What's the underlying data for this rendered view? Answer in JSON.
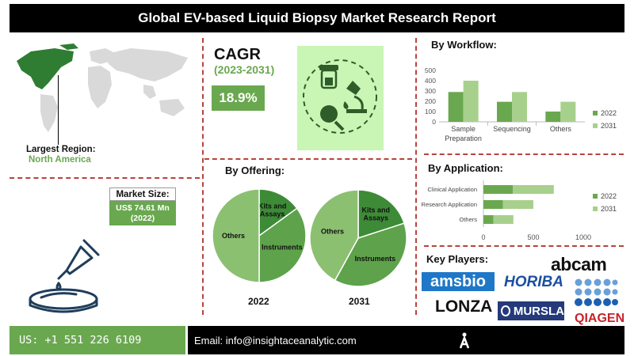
{
  "title": "Global EV-based Liquid Biopsy Market Research Report",
  "cagr": {
    "label": "CAGR",
    "years": "(2023-2031)",
    "value": "18.9%"
  },
  "region": {
    "label": "Largest Region:",
    "value": "North America"
  },
  "market_size": {
    "label": "Market Size:",
    "value_line1": "US$ 74.61 Mn",
    "value_line2": "(2022)"
  },
  "offering": {
    "title": "By Offering:",
    "years": [
      "2022",
      "2031"
    ],
    "slices": [
      "Kits and Assays",
      "Instruments",
      "Others"
    ]
  },
  "workflow": {
    "title": "By Workflow:"
  },
  "application": {
    "title": "By Application:"
  },
  "key_players": {
    "title": "Key Players:",
    "logos": [
      "abcam",
      "amsbio",
      "HORIBA",
      "LONZA",
      "MURSLA",
      "QIAGEN"
    ]
  },
  "footer": {
    "phone": "US: +1 551 226 6109",
    "email": "Email: info@insightaceanalytic.com"
  },
  "colors": {
    "green_2022": "#6aa84f",
    "green_2031": "#a8d08d",
    "pie_dark": "#3d8b37",
    "pie_mid": "#5ea24b",
    "pie_light": "#8cc071",
    "divider": "#b8433d"
  },
  "chart_data": [
    {
      "type": "bar",
      "title": "By Workflow:",
      "categories": [
        "Sample Preparation",
        "Sequencing",
        "Others"
      ],
      "series": [
        {
          "name": "2022",
          "values": [
            290,
            195,
            100
          ]
        },
        {
          "name": "2031",
          "values": [
            400,
            290,
            195
          ]
        }
      ],
      "ylim": [
        0,
        500
      ],
      "yticks": [
        0,
        100,
        200,
        300,
        400,
        500
      ],
      "legend": "right"
    },
    {
      "type": "bar",
      "orientation": "horizontal",
      "stacked": true,
      "title": "By Application:",
      "categories": [
        "Clinical Application",
        "Research Application",
        "Others"
      ],
      "series": [
        {
          "name": "2022",
          "values": [
            295,
            195,
            100
          ]
        },
        {
          "name": "2031",
          "values": [
            410,
            305,
            200
          ]
        }
      ],
      "xlim": [
        0,
        1000
      ],
      "xticks": [
        0,
        500,
        1000
      ],
      "legend": "right"
    },
    {
      "type": "pie",
      "title": "2022",
      "labels": [
        "Kits and Assays",
        "Instruments",
        "Others"
      ],
      "values": [
        15,
        35,
        50
      ]
    },
    {
      "type": "pie",
      "title": "2031",
      "labels": [
        "Kits and Assays",
        "Instruments",
        "Others"
      ],
      "values": [
        20,
        38,
        42
      ]
    }
  ]
}
